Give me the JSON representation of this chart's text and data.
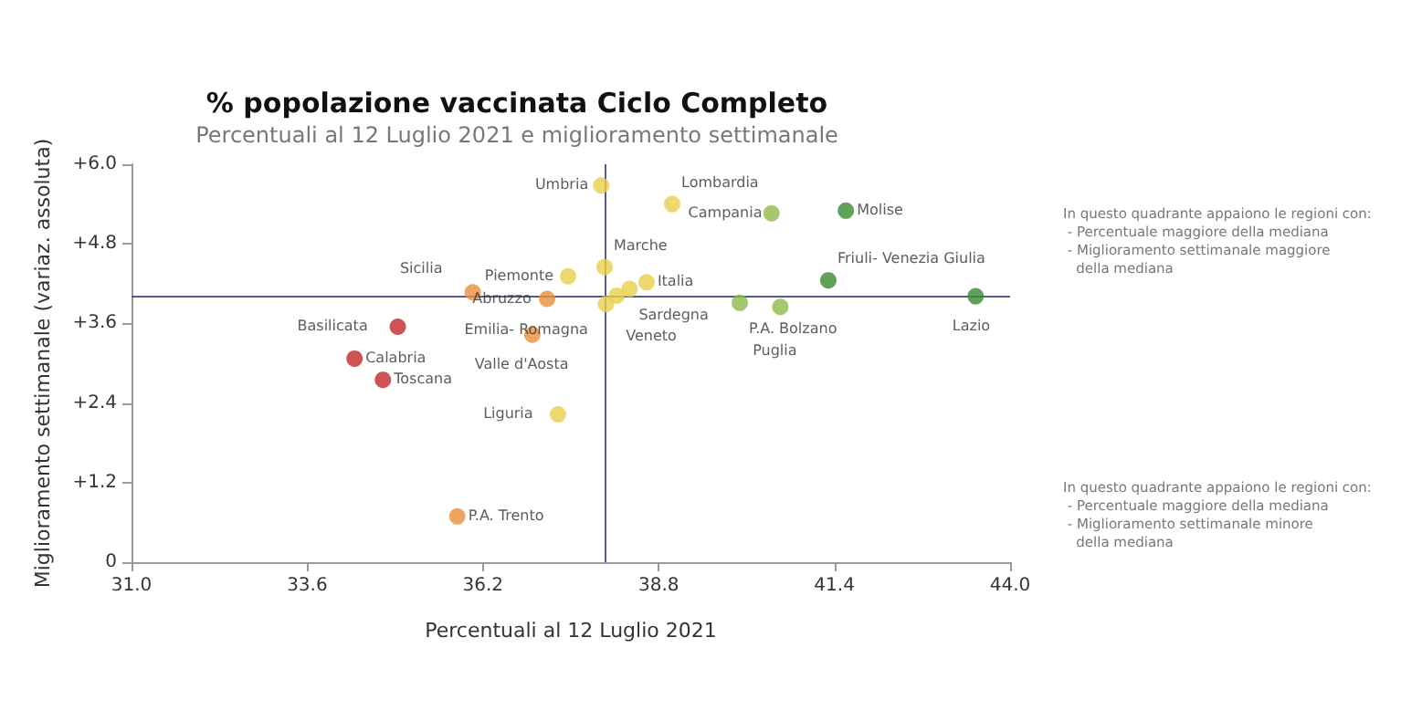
{
  "chart_data": {
    "type": "scatter",
    "title": "% popolazione vaccinata Ciclo Completo",
    "subtitle": "Percentuali al 12 Luglio 2021 e miglioramento settimanale",
    "xlabel": "Percentuali al 12 Luglio 2021",
    "ylabel": "Miglioramento settimanale (variaz. assoluta)",
    "xlim": [
      31,
      44
    ],
    "xticks": [
      {
        "value": 31,
        "label": "31.0"
      },
      {
        "value": 33.6,
        "label": "33.6"
      },
      {
        "value": 36.2,
        "label": "36.2"
      },
      {
        "value": 38.8,
        "label": "38.8"
      },
      {
        "value": 41.4,
        "label": "41.4"
      },
      {
        "value": 44,
        "label": "44.0"
      }
    ],
    "ylim": [
      0,
      6
    ],
    "yticks": [
      0,
      {
        "value": 1.2,
        "label": "+1.2"
      },
      {
        "value": 2.4,
        "label": "+2.4"
      },
      {
        "value": 3.6,
        "label": "+3.6"
      },
      {
        "value": 4.8,
        "label": "+4.8"
      },
      {
        "value": 6,
        "label": "+6.0"
      }
    ],
    "grid": false,
    "marker": "circle",
    "ref_lines": [
      {
        "axis": "x",
        "value": 38.0,
        "color": "#5a5a8a"
      },
      {
        "axis": "y",
        "value": 4.0,
        "color": "#5a5a8a"
      }
    ],
    "series": [
      {
        "x": [
          37.95,
          39.0,
          40.47,
          41.57,
          38.0,
          37.46,
          41.31,
          38.62,
          38.37,
          38.18,
          38.02,
          36.05,
          37.15,
          40.0,
          40.6,
          43.49,
          34.94,
          34.3,
          34.72,
          36.93,
          37.31,
          35.82
        ],
        "values": [
          5.68,
          5.4,
          5.26,
          5.3,
          4.45,
          4.31,
          4.25,
          4.22,
          4.12,
          4.02,
          3.89,
          4.07,
          3.97,
          3.91,
          3.85,
          4.01,
          3.55,
          3.07,
          2.75,
          3.43,
          2.23,
          0.69
        ],
        "colors": [
          "#e8d048",
          "#e8d048",
          "#8cba48",
          "#3a8a30",
          "#e8d048",
          "#e8d048",
          "#3a8a30",
          "#e8d048",
          "#e8d048",
          "#e8d048",
          "#e8d048",
          "#e8903a",
          "#e8903a",
          "#8cba48",
          "#8cba48",
          "#3a8a30",
          "#c0282a",
          "#c0282a",
          "#c0282a",
          "#e8903a",
          "#e8d048",
          "#e8903a"
        ],
        "value_labels": [
          "Umbria",
          "Lombardia",
          "Campania",
          "Molise",
          "Marche",
          "Piemonte",
          "Friuli- Venezia Giulia",
          "Italia",
          "Sardegna",
          "Veneto",
          "Emilia- Romagna",
          "Sicilia",
          "Abruzzo",
          "P.A. Bolzano",
          "Puglia",
          "Lazio",
          "Basilicata",
          "Calabria",
          "Toscana",
          "Valle d'Aosta",
          "Liguria",
          "P.A. Trento"
        ]
      }
    ],
    "annotations": [
      "In questo quadrante appaiono le regioni con:\n - Percentuale maggiore della mediana\n - Miglioramento settimanale maggiore\n   della mediana",
      "In questo quadrante appaiono le regioni con:\n - Percentuale maggiore della mediana\n - Miglioramento settimanale minore\n   della mediana"
    ]
  }
}
